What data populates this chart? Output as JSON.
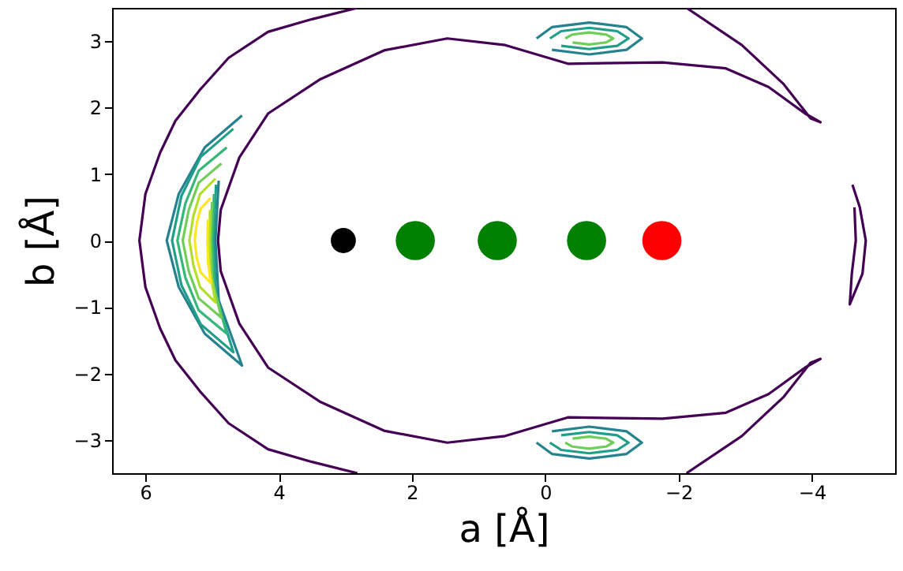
{
  "chart_data": {
    "type": "line",
    "xlabel": "a [Å]",
    "ylabel": "b [Å]",
    "xlim": [
      6.5,
      -5.25
    ],
    "ylim": [
      -3.5,
      3.5
    ],
    "xticks": [
      6,
      4,
      2,
      0,
      -2,
      -4
    ],
    "yticks": [
      -3,
      -2,
      -1,
      0,
      1,
      2,
      3
    ],
    "grid": false,
    "series": [
      {
        "color": "#440154",
        "x": [
          2.82,
          3.5,
          4.16,
          4.75,
          5.18,
          5.55,
          5.78,
          6.0,
          6.09,
          6.0,
          5.78,
          5.55,
          5.18,
          4.75,
          4.16,
          3.5,
          2.82
        ],
        "values": [
          3.5,
          3.33,
          3.14,
          2.75,
          2.27,
          1.8,
          1.32,
          0.7,
          0,
          -0.7,
          -1.32,
          -1.8,
          -2.27,
          -2.75,
          -3.14,
          -3.33,
          -3.5
        ]
      },
      {
        "color": "#440154",
        "x": [
          -2.12,
          -2.95,
          -3.58,
          -3.98,
          -4.13,
          -3.9,
          -3.35,
          -2.71,
          -1.76,
          -0.34,
          0.6,
          1.47,
          2.42,
          3.37,
          4.16,
          4.59,
          4.87,
          4.91,
          4.87,
          4.59,
          4.16,
          3.37,
          2.42,
          1.47,
          0.6,
          -0.34,
          -1.76,
          -2.71,
          -3.35,
          -3.9,
          -4.13,
          -3.98,
          -3.58,
          -2.95,
          -2.12
        ],
        "values": [
          3.5,
          2.94,
          2.35,
          1.84,
          1.78,
          1.91,
          2.31,
          2.59,
          2.68,
          2.66,
          2.94,
          3.04,
          2.86,
          2.43,
          1.91,
          1.25,
          0.46,
          0,
          -0.46,
          -1.25,
          -1.91,
          -2.43,
          -2.86,
          -3.04,
          -2.94,
          -2.66,
          -2.68,
          -2.59,
          -2.31,
          -1.91,
          -1.78,
          -1.84,
          -2.35,
          -2.94,
          -3.5
        ]
      },
      {
        "color": "#440154",
        "x": [
          -4.61,
          -4.72,
          -4.81,
          -4.76,
          -4.57,
          -4.6,
          -4.66,
          -4.64
        ],
        "values": [
          0.84,
          0.5,
          0,
          -0.5,
          -0.96,
          -0.5,
          0,
          0.5
        ]
      },
      {
        "color": "#26828e",
        "x": [
          4.55,
          5.11,
          5.5,
          5.68,
          5.5,
          5.11,
          4.55,
          4.9,
          4.95,
          4.9
        ],
        "values": [
          1.88,
          1.4,
          0.7,
          0,
          -0.7,
          -1.4,
          -1.88,
          -0.9,
          0,
          0.9
        ]
      },
      {
        "color": "#1f9e89",
        "x": [
          4.68,
          5.17,
          5.46,
          5.6,
          5.46,
          5.17,
          4.68,
          4.94,
          4.98,
          4.94
        ],
        "values": [
          1.68,
          1.26,
          0.67,
          0,
          -0.67,
          -1.26,
          -1.68,
          -0.84,
          0,
          0.84
        ]
      },
      {
        "color": "#35b779",
        "x": [
          4.78,
          5.2,
          5.4,
          5.52,
          5.4,
          5.2,
          4.78,
          4.97,
          5.0,
          4.97
        ],
        "values": [
          1.4,
          1.05,
          0.56,
          0,
          -0.56,
          -1.05,
          -1.4,
          -0.7,
          0,
          0.7
        ]
      },
      {
        "color": "#6ece58",
        "x": [
          4.86,
          5.2,
          5.35,
          5.44,
          5.35,
          5.2,
          4.86,
          5.0,
          5.02,
          5.0
        ],
        "values": [
          1.16,
          0.87,
          0.46,
          0,
          -0.46,
          -0.87,
          -1.16,
          -0.58,
          0,
          0.58
        ]
      },
      {
        "color": "#b5de2b",
        "x": [
          4.95,
          5.18,
          5.28,
          5.34,
          5.28,
          5.18,
          4.95,
          5.03,
          5.04,
          5.03
        ],
        "values": [
          0.93,
          0.7,
          0.37,
          0,
          -0.37,
          -0.7,
          -0.93,
          -0.46,
          0,
          0.46
        ]
      },
      {
        "color": "#fde725",
        "x": [
          5.02,
          5.17,
          5.23,
          5.26,
          5.23,
          5.17,
          5.02,
          5.06,
          5.07,
          5.06
        ],
        "values": [
          0.64,
          0.48,
          0.26,
          0,
          -0.26,
          -0.48,
          -0.64,
          -0.32,
          0,
          0.32
        ]
      },
      {
        "color": "#26828e",
        "x": [
          0.13,
          -0.1,
          -0.66,
          -1.22,
          -1.45,
          -1.22,
          -0.66,
          -0.1
        ],
        "values": [
          3.04,
          3.21,
          3.28,
          3.21,
          3.04,
          2.87,
          2.8,
          2.87
        ]
      },
      {
        "color": "#1f9e89",
        "x": [
          -0.07,
          -0.24,
          -0.66,
          -1.08,
          -1.25,
          -1.08,
          -0.66,
          -0.24
        ],
        "values": [
          3.04,
          3.15,
          3.2,
          3.15,
          3.04,
          2.93,
          2.88,
          2.93
        ]
      },
      {
        "color": "#6ece58",
        "x": [
          -0.3,
          -0.41,
          -0.66,
          -0.91,
          -1.02,
          -0.91,
          -0.66,
          -0.41
        ],
        "values": [
          3.04,
          3.1,
          3.13,
          3.1,
          3.04,
          2.98,
          2.95,
          2.98
        ]
      },
      {
        "color": "#26828e",
        "x": [
          0.13,
          -0.1,
          -0.66,
          -1.22,
          -1.45,
          -1.22,
          -0.66,
          -0.1
        ],
        "values": [
          -3.04,
          -3.21,
          -3.28,
          -3.21,
          -3.04,
          -2.87,
          -2.8,
          -2.87
        ]
      },
      {
        "color": "#1f9e89",
        "x": [
          -0.07,
          -0.24,
          -0.66,
          -1.08,
          -1.25,
          -1.08,
          -0.66,
          -0.24
        ],
        "values": [
          -3.04,
          -3.15,
          -3.2,
          -3.15,
          -3.04,
          -2.93,
          -2.88,
          -2.93
        ]
      },
      {
        "color": "#6ece58",
        "x": [
          -0.3,
          -0.41,
          -0.66,
          -0.91,
          -1.02,
          -0.91,
          -0.66,
          -0.41
        ],
        "values": [
          -3.04,
          -3.1,
          -3.13,
          -3.1,
          -3.04,
          -2.98,
          -2.95,
          -2.98
        ]
      },
      {
        "type": "bubble",
        "x": [
          3.03,
          1.95,
          0.72,
          -0.62,
          -1.75
        ],
        "values": [
          0,
          0,
          0,
          0,
          0
        ],
        "sizes": [
          0.41,
          1,
          1,
          1,
          1
        ],
        "colors": [
          "#000000",
          "#008000",
          "#008000",
          "#008000",
          "#ff0000"
        ]
      }
    ]
  }
}
